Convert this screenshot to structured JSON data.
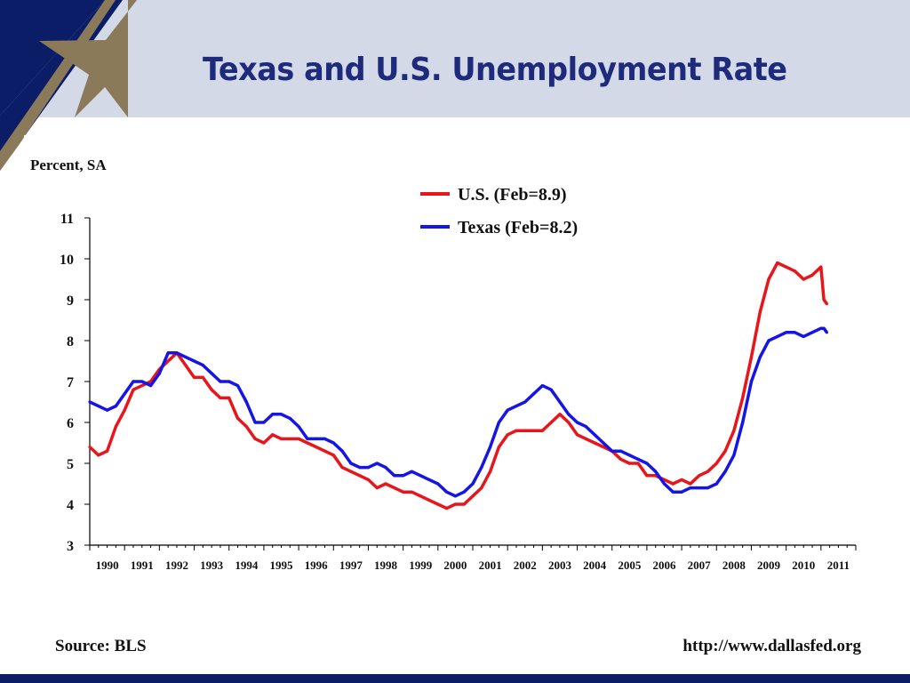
{
  "slide": {
    "title": "Texas and U.S. Unemployment Rate",
    "source": "Source: BLS",
    "url": "http://www.dallasfed.org",
    "colors": {
      "header_bg": "#d3d9e7",
      "title": "#1e2b7c",
      "navy": "#0a1d66",
      "star": "#8a7a5a"
    }
  },
  "chart_data": {
    "type": "line",
    "ylabel": "Percent,  SA",
    "ylim": [
      3,
      11
    ],
    "yticks": [
      "3",
      "4",
      "5",
      "6",
      "7",
      "8",
      "9",
      "10",
      "11"
    ],
    "xlim": [
      1990,
      2012
    ],
    "xticks": [
      "1990",
      "1991",
      "1992",
      "1993",
      "1994",
      "1995",
      "1996",
      "1997",
      "1998",
      "1999",
      "2000",
      "2001",
      "2002",
      "2003",
      "2004",
      "2005",
      "2006",
      "2007",
      "2008",
      "2009",
      "2010",
      "2011"
    ],
    "legend": "top-center",
    "grid": false,
    "series": [
      {
        "name": "U.S. (Feb=8.9)",
        "color": "#e8151b",
        "x": [
          1990.0,
          1990.25,
          1990.5,
          1990.75,
          1991.0,
          1991.25,
          1991.5,
          1991.75,
          1992.0,
          1992.25,
          1992.5,
          1992.75,
          1993.0,
          1993.25,
          1993.5,
          1993.75,
          1994.0,
          1994.25,
          1994.5,
          1994.75,
          1995.0,
          1995.25,
          1995.5,
          1995.75,
          1996.0,
          1996.25,
          1996.5,
          1996.75,
          1997.0,
          1997.25,
          1997.5,
          1997.75,
          1998.0,
          1998.25,
          1998.5,
          1998.75,
          1999.0,
          1999.25,
          1999.5,
          1999.75,
          2000.0,
          2000.25,
          2000.5,
          2000.75,
          2001.0,
          2001.25,
          2001.5,
          2001.75,
          2002.0,
          2002.25,
          2002.5,
          2002.75,
          2003.0,
          2003.25,
          2003.5,
          2003.75,
          2004.0,
          2004.25,
          2004.5,
          2004.75,
          2005.0,
          2005.25,
          2005.5,
          2005.75,
          2006.0,
          2006.25,
          2006.5,
          2006.75,
          2007.0,
          2007.25,
          2007.5,
          2007.75,
          2008.0,
          2008.25,
          2008.5,
          2008.75,
          2009.0,
          2009.25,
          2009.5,
          2009.75,
          2010.0,
          2010.25,
          2010.5,
          2010.75,
          2011.0,
          2011.083,
          2011.167
        ],
        "values": [
          5.4,
          5.2,
          5.3,
          5.9,
          6.3,
          6.8,
          6.9,
          7.0,
          7.3,
          7.5,
          7.7,
          7.4,
          7.1,
          7.1,
          6.8,
          6.6,
          6.6,
          6.1,
          5.9,
          5.6,
          5.5,
          5.7,
          5.6,
          5.6,
          5.6,
          5.5,
          5.4,
          5.3,
          5.2,
          4.9,
          4.8,
          4.7,
          4.6,
          4.4,
          4.5,
          4.4,
          4.3,
          4.3,
          4.2,
          4.1,
          4.0,
          3.9,
          4.0,
          4.0,
          4.2,
          4.4,
          4.8,
          5.4,
          5.7,
          5.8,
          5.8,
          5.8,
          5.8,
          6.0,
          6.2,
          6.0,
          5.7,
          5.6,
          5.5,
          5.4,
          5.3,
          5.1,
          5.0,
          5.0,
          4.7,
          4.7,
          4.6,
          4.5,
          4.6,
          4.5,
          4.7,
          4.8,
          5.0,
          5.3,
          5.8,
          6.6,
          7.6,
          8.7,
          9.5,
          9.9,
          9.8,
          9.7,
          9.5,
          9.6,
          9.8,
          9.0,
          8.9
        ]
      },
      {
        "name": "Texas (Feb=8.2)",
        "color": "#1515e6",
        "x": [
          1990.0,
          1990.25,
          1990.5,
          1990.75,
          1991.0,
          1991.25,
          1991.5,
          1991.75,
          1992.0,
          1992.25,
          1992.5,
          1992.75,
          1993.0,
          1993.25,
          1993.5,
          1993.75,
          1994.0,
          1994.25,
          1994.5,
          1994.75,
          1995.0,
          1995.25,
          1995.5,
          1995.75,
          1996.0,
          1996.25,
          1996.5,
          1996.75,
          1997.0,
          1997.25,
          1997.5,
          1997.75,
          1998.0,
          1998.25,
          1998.5,
          1998.75,
          1999.0,
          1999.25,
          1999.5,
          1999.75,
          2000.0,
          2000.25,
          2000.5,
          2000.75,
          2001.0,
          2001.25,
          2001.5,
          2001.75,
          2002.0,
          2002.25,
          2002.5,
          2002.75,
          2003.0,
          2003.25,
          2003.5,
          2003.75,
          2004.0,
          2004.25,
          2004.5,
          2004.75,
          2005.0,
          2005.25,
          2005.5,
          2005.75,
          2006.0,
          2006.25,
          2006.5,
          2006.75,
          2007.0,
          2007.25,
          2007.5,
          2007.75,
          2008.0,
          2008.25,
          2008.5,
          2008.75,
          2009.0,
          2009.25,
          2009.5,
          2009.75,
          2010.0,
          2010.25,
          2010.5,
          2010.75,
          2011.0,
          2011.083,
          2011.167
        ],
        "values": [
          6.5,
          6.4,
          6.3,
          6.4,
          6.7,
          7.0,
          7.0,
          6.9,
          7.2,
          7.7,
          7.7,
          7.6,
          7.5,
          7.4,
          7.2,
          7.0,
          7.0,
          6.9,
          6.5,
          6.0,
          6.0,
          6.2,
          6.2,
          6.1,
          5.9,
          5.6,
          5.6,
          5.6,
          5.5,
          5.3,
          5.0,
          4.9,
          4.9,
          5.0,
          4.9,
          4.7,
          4.7,
          4.8,
          4.7,
          4.6,
          4.5,
          4.3,
          4.2,
          4.3,
          4.5,
          4.9,
          5.4,
          6.0,
          6.3,
          6.4,
          6.5,
          6.7,
          6.9,
          6.8,
          6.5,
          6.2,
          6.0,
          5.9,
          5.7,
          5.5,
          5.3,
          5.3,
          5.2,
          5.1,
          5.0,
          4.8,
          4.5,
          4.3,
          4.3,
          4.4,
          4.4,
          4.4,
          4.5,
          4.8,
          5.2,
          6.0,
          7.0,
          7.6,
          8.0,
          8.1,
          8.2,
          8.2,
          8.1,
          8.2,
          8.3,
          8.3,
          8.2
        ]
      }
    ]
  }
}
